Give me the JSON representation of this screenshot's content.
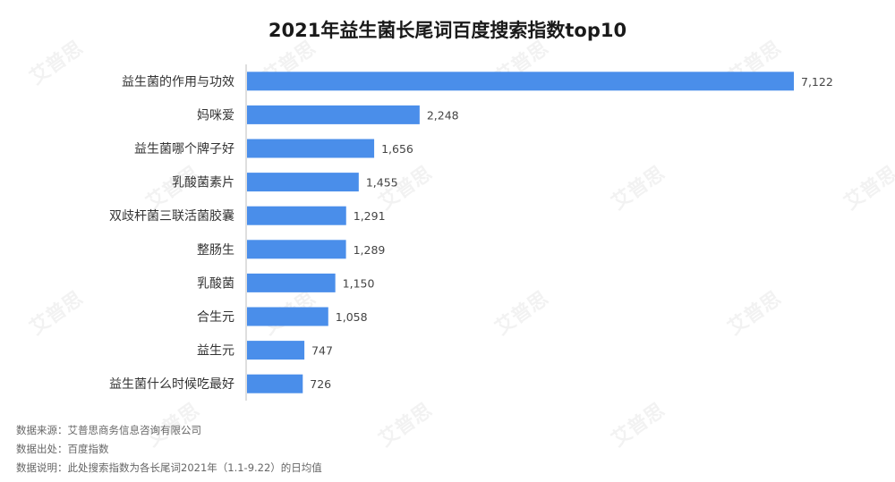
{
  "chart_data": {
    "type": "bar",
    "orientation": "horizontal",
    "title": "2021年益生菌长尾词百度搜索指数top10",
    "categories": [
      "益生菌的作用与功效",
      "妈咪爱",
      "益生菌哪个牌子好",
      "乳酸菌素片",
      "双歧杆菌三联活菌胶囊",
      "整肠生",
      "乳酸菌",
      "合生元",
      "益生元",
      "益生菌什么时候吃最好"
    ],
    "values": [
      7122,
      2248,
      1656,
      1455,
      1291,
      1289,
      1150,
      1058,
      747,
      726
    ],
    "value_labels": [
      "7,122",
      "2,248",
      "1,656",
      "1,455",
      "1,291",
      "1,289",
      "1,150",
      "1,058",
      "747",
      "726"
    ],
    "xlim": [
      0,
      7122
    ],
    "bar_color": "#4a8eea",
    "grid": false,
    "legend": "none"
  },
  "notes": {
    "source": "数据来源：艾普思商务信息咨询有限公司",
    "origin": "数据出处：百度指数",
    "explanation": "数据说明：此处搜索指数为各长尾词2021年（1.1-9.22）的日均值"
  },
  "watermark": "艾普思"
}
